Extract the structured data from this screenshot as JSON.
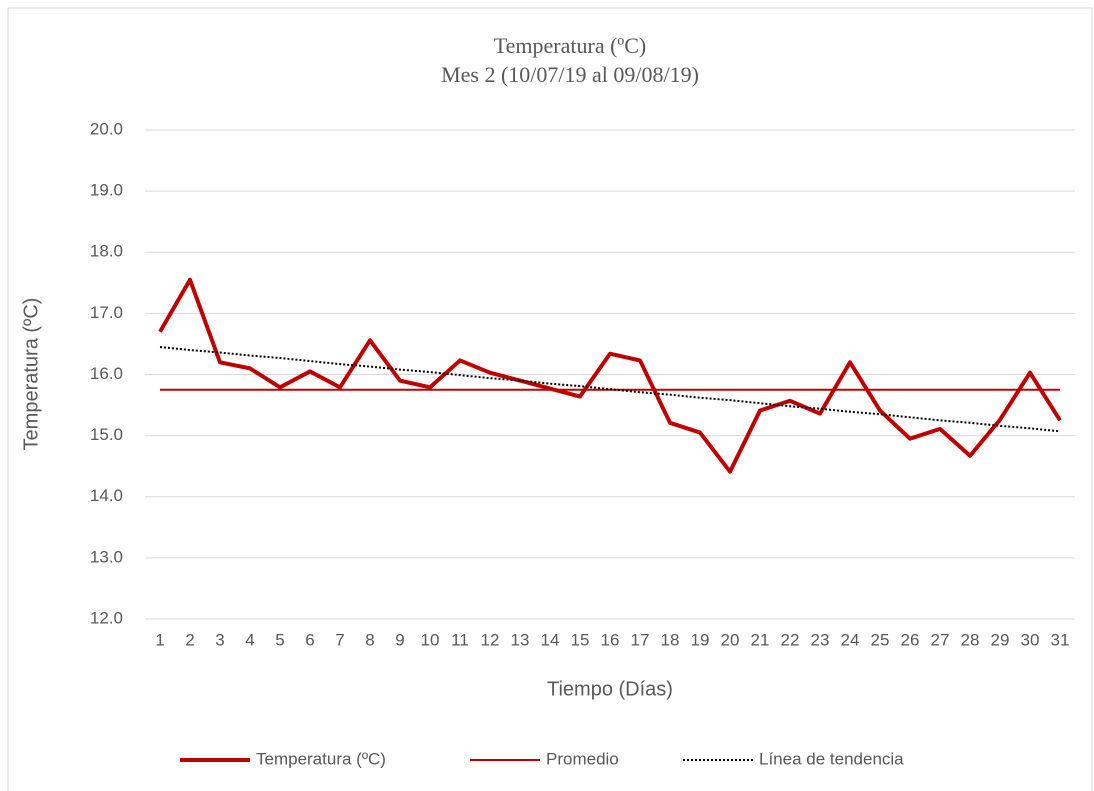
{
  "chart_data": {
    "type": "line",
    "title": "Temperatura (ºC)",
    "subtitle": "Mes 2 (10/07/19 al 09/08/19)",
    "x_label": "Tiempo (Días)",
    "y_label": "Temperatura (ºC)",
    "categories": [
      "1",
      "2",
      "3",
      "4",
      "5",
      "6",
      "7",
      "8",
      "9",
      "10",
      "11",
      "12",
      "13",
      "14",
      "15",
      "16",
      "17",
      "18",
      "19",
      "20",
      "21",
      "22",
      "23",
      "24",
      "25",
      "26",
      "27",
      "28",
      "29",
      "30",
      "31"
    ],
    "series": [
      {
        "name": "Temperatura (ºC)",
        "color": "#c00000",
        "style": "thick",
        "values": [
          16.7,
          17.55,
          16.2,
          16.1,
          15.79,
          16.05,
          15.79,
          16.56,
          15.9,
          15.79,
          16.23,
          16.03,
          15.9,
          15.77,
          15.64,
          16.34,
          16.23,
          15.21,
          15.05,
          14.41,
          15.41,
          15.57,
          15.36,
          16.2,
          15.41,
          14.95,
          15.11,
          14.67,
          15.26,
          16.03,
          15.25
        ]
      },
      {
        "name": "Promedio",
        "color": "#c00000",
        "style": "thin",
        "values": [
          15.75,
          15.75,
          15.75,
          15.75,
          15.75,
          15.75,
          15.75,
          15.75,
          15.75,
          15.75,
          15.75,
          15.75,
          15.75,
          15.75,
          15.75,
          15.75,
          15.75,
          15.75,
          15.75,
          15.75,
          15.75,
          15.75,
          15.75,
          15.75,
          15.75,
          15.75,
          15.75,
          15.75,
          15.75,
          15.75,
          15.75
        ]
      },
      {
        "name": "Línea de tendencia",
        "color": "#000000",
        "style": "dotted",
        "values": [
          16.45,
          16.4,
          16.36,
          16.31,
          16.27,
          16.22,
          16.17,
          16.13,
          16.08,
          16.04,
          15.99,
          15.94,
          15.9,
          15.85,
          15.81,
          15.76,
          15.71,
          15.67,
          15.62,
          15.58,
          15.53,
          15.48,
          15.44,
          15.39,
          15.35,
          15.3,
          15.25,
          15.21,
          15.16,
          15.12,
          15.07
        ]
      }
    ],
    "ylim": [
      12,
      20
    ],
    "yticks": [
      {
        "value": 12,
        "label": "12.0"
      },
      {
        "value": 13,
        "label": "13.0"
      },
      {
        "value": 14,
        "label": "14.0"
      },
      {
        "value": 15,
        "label": "15.0"
      },
      {
        "value": 16,
        "label": "16.0"
      },
      {
        "value": 17,
        "label": "17.0"
      },
      {
        "value": 18,
        "label": "18.0"
      },
      {
        "value": 19,
        "label": "19.0"
      },
      {
        "value": 20,
        "label": "20.0"
      }
    ],
    "grid": true,
    "legend": "bottom"
  }
}
